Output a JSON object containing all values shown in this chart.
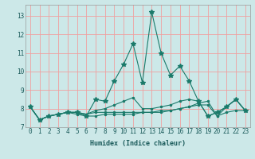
{
  "xlabel": "Humidex (Indice chaleur)",
  "ylabel": "",
  "bg_color": "#cce8e8",
  "grid_color": "#f0a0a0",
  "line_color": "#1a7a6a",
  "xlim": [
    -0.5,
    23.5
  ],
  "ylim": [
    7.0,
    13.6
  ],
  "yticks": [
    7,
    8,
    9,
    10,
    11,
    12,
    13
  ],
  "xticks": [
    0,
    1,
    2,
    3,
    4,
    5,
    6,
    7,
    8,
    9,
    10,
    11,
    12,
    13,
    14,
    15,
    16,
    17,
    18,
    19,
    20,
    21,
    22,
    23
  ],
  "series": [
    [
      8.1,
      7.4,
      7.6,
      7.7,
      7.8,
      7.8,
      7.6,
      8.5,
      8.4,
      9.5,
      10.4,
      11.5,
      9.4,
      13.2,
      11.0,
      9.8,
      10.3,
      9.5,
      8.4,
      7.6,
      7.8,
      8.1,
      8.5,
      7.9
    ],
    [
      8.1,
      7.4,
      7.6,
      7.7,
      7.8,
      7.7,
      7.6,
      7.6,
      7.7,
      7.7,
      7.7,
      7.7,
      7.8,
      7.8,
      7.9,
      7.9,
      8.0,
      8.1,
      8.2,
      8.2,
      7.6,
      7.8,
      7.9,
      7.9
    ],
    [
      8.1,
      7.4,
      7.6,
      7.7,
      7.8,
      7.8,
      7.7,
      7.8,
      7.8,
      7.8,
      7.8,
      7.8,
      7.8,
      7.8,
      7.8,
      7.9,
      8.0,
      8.1,
      8.3,
      8.4,
      7.6,
      8.1,
      8.5,
      7.9
    ],
    [
      8.1,
      7.4,
      7.6,
      7.7,
      7.8,
      7.8,
      7.7,
      7.9,
      8.0,
      8.2,
      8.4,
      8.6,
      8.0,
      8.0,
      8.1,
      8.2,
      8.4,
      8.5,
      8.4,
      7.6,
      7.8,
      8.1,
      8.5,
      7.9
    ]
  ]
}
